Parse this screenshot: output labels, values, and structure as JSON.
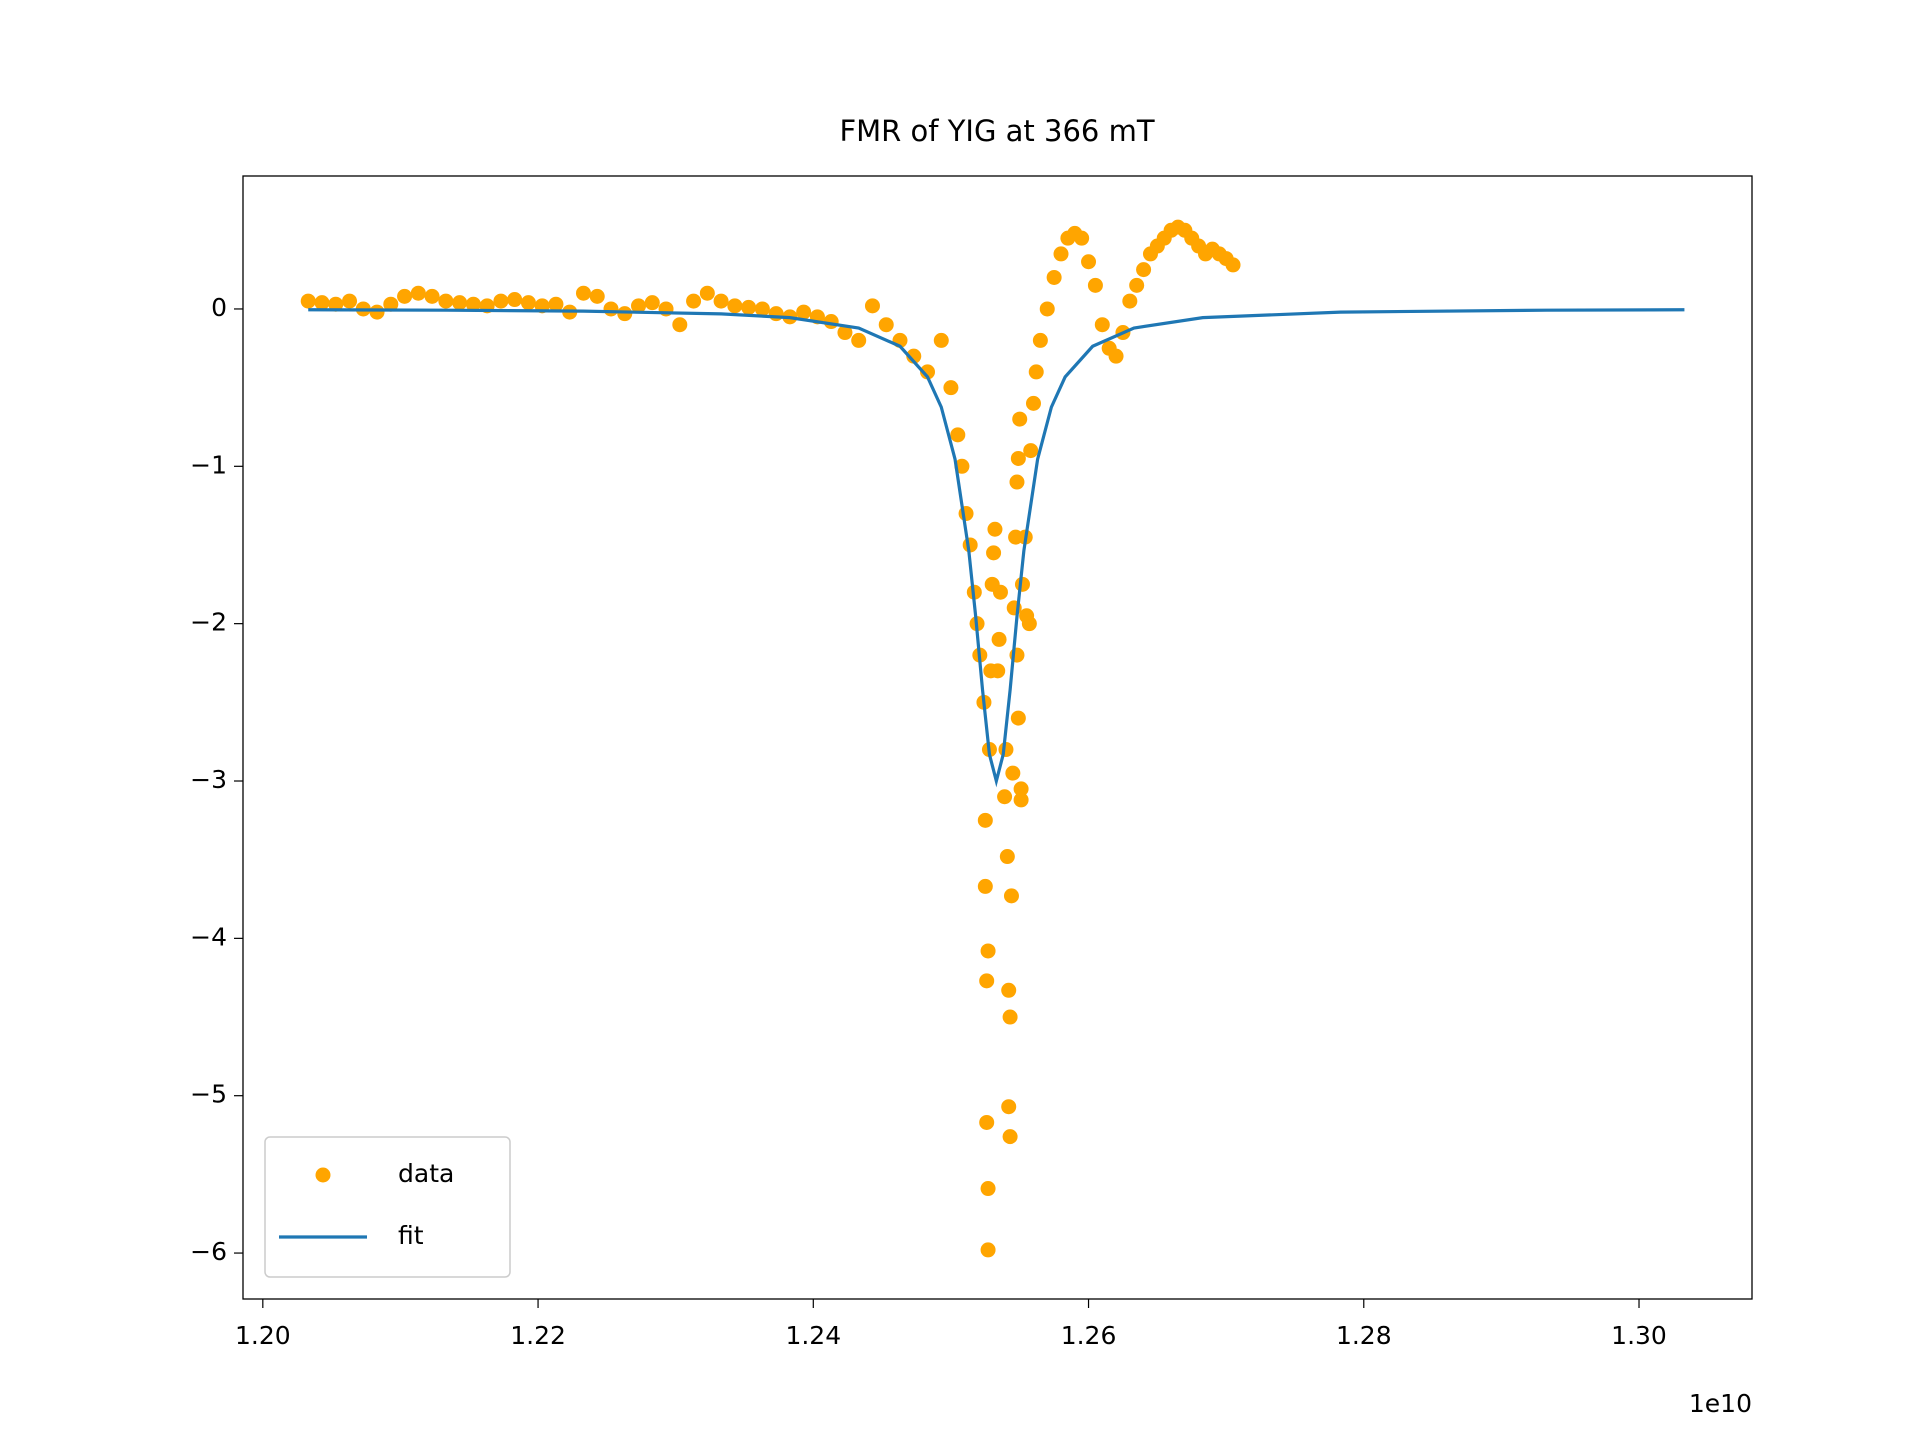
{
  "chart_data": {
    "type": "scatter",
    "title": "FMR of YIG at 366 mT",
    "x_offset_label": "1e10",
    "xlim": [
      1.19856,
      1.30821
    ],
    "ylim": [
      -6.292,
      0.845
    ],
    "xticks": [
      {
        "value": 1.2,
        "label": "1.20"
      },
      {
        "value": 1.22,
        "label": "1.22"
      },
      {
        "value": 1.24,
        "label": "1.24"
      },
      {
        "value": 1.26,
        "label": "1.26"
      },
      {
        "value": 1.28,
        "label": "1.28"
      },
      {
        "value": 1.3,
        "label": "1.30"
      }
    ],
    "yticks": [
      0,
      {
        "value": -1,
        "label": "−1"
      },
      {
        "value": -2,
        "label": "−2"
      },
      {
        "value": -3,
        "label": "−3"
      },
      {
        "value": -4,
        "label": "−4"
      },
      {
        "value": -5,
        "label": "−5"
      },
      {
        "value": -6,
        "label": "−6"
      }
    ],
    "legend": "lower left",
    "grid": false,
    "series": [
      {
        "name": "data",
        "color": "#ffa500",
        "style": "scatter",
        "x": [
          1.2033,
          1.2043,
          1.2053,
          1.2063,
          1.2073,
          1.2083,
          1.2093,
          1.2103,
          1.2113,
          1.2123,
          1.2133,
          1.2143,
          1.2153,
          1.2163,
          1.2173,
          1.2183,
          1.2193,
          1.2203,
          1.2213,
          1.2223,
          1.2233,
          1.2243,
          1.2253,
          1.2263,
          1.2273,
          1.2283,
          1.2293,
          1.2303,
          1.2313,
          1.2323,
          1.2333,
          1.2343,
          1.2353,
          1.2363,
          1.2373,
          1.2383,
          1.2393,
          1.2403,
          1.2413,
          1.2423,
          1.2433,
          1.2443,
          1.2453,
          1.2463,
          1.2473,
          1.2483,
          1.2493,
          1.25,
          1.2505,
          1.2508,
          1.2511,
          1.2514,
          1.2517,
          1.2519,
          1.2521,
          1.2524,
          1.2525,
          1.2525,
          1.2526,
          1.2526,
          1.2527,
          1.2527,
          1.2527,
          1.2528,
          1.2529,
          1.253,
          1.2531,
          1.2532,
          1.2534,
          1.2535,
          1.2536,
          1.2539,
          1.254,
          1.2541,
          1.2542,
          1.2542,
          1.2543,
          1.2543,
          1.2544,
          1.2545,
          1.2546,
          1.2547,
          1.2548,
          1.2549,
          1.255,
          1.2551,
          1.2551,
          1.2549,
          1.2548,
          1.2552,
          1.2554,
          1.2555,
          1.2557,
          1.2558,
          1.256,
          1.2562,
          1.2565,
          1.257,
          1.2575,
          1.258,
          1.2585,
          1.259,
          1.2595,
          1.26,
          1.2605,
          1.261,
          1.2615,
          1.262,
          1.2625,
          1.263,
          1.2635,
          1.264,
          1.2645,
          1.265,
          1.2655,
          1.266,
          1.2665,
          1.267,
          1.2675,
          1.268,
          1.2685,
          1.269,
          1.2695,
          1.27,
          1.2705
        ],
        "values": [
          0.05,
          0.04,
          0.03,
          0.05,
          0.0,
          -0.02,
          0.03,
          0.08,
          0.1,
          0.08,
          0.05,
          0.04,
          0.03,
          0.02,
          0.05,
          0.06,
          0.04,
          0.02,
          0.03,
          -0.02,
          0.1,
          0.08,
          0.0,
          -0.03,
          0.02,
          0.04,
          0.0,
          -0.1,
          0.05,
          0.1,
          0.05,
          0.02,
          0.01,
          0.0,
          -0.03,
          -0.05,
          -0.02,
          -0.05,
          -0.08,
          -0.15,
          -0.2,
          0.02,
          -0.1,
          -0.2,
          -0.3,
          -0.4,
          -0.2,
          -0.5,
          -0.8,
          -1.0,
          -1.3,
          -1.5,
          -1.8,
          -2.0,
          -2.2,
          -2.5,
          -3.25,
          -3.67,
          -4.27,
          -5.17,
          -5.98,
          -5.59,
          -4.08,
          -2.8,
          -2.3,
          -1.75,
          -1.55,
          -1.4,
          -2.3,
          -2.1,
          -1.8,
          -3.1,
          -2.8,
          -3.48,
          -5.07,
          -4.33,
          -4.5,
          -5.26,
          -3.73,
          -2.95,
          -1.9,
          -1.45,
          -1.1,
          -0.95,
          -0.7,
          -3.05,
          -3.12,
          -2.6,
          -2.2,
          -1.75,
          -1.45,
          -1.95,
          -2.0,
          -0.9,
          -0.6,
          -0.4,
          -0.2,
          0.0,
          0.2,
          0.35,
          0.45,
          0.48,
          0.45,
          0.3,
          0.15,
          -0.1,
          -0.25,
          -0.3,
          -0.15,
          0.05,
          0.15,
          0.25,
          0.35,
          0.4,
          0.45,
          0.5,
          0.52,
          0.5,
          0.45,
          0.4,
          0.35,
          0.38,
          0.35,
          0.32,
          0.28
        ]
      },
      {
        "name": "fit",
        "color": "#1f77b4",
        "style": "line",
        "x": [
          1.2033,
          1.2133,
          1.2233,
          1.2333,
          1.2383,
          1.2433,
          1.2463,
          1.2483,
          1.2493,
          1.2503,
          1.2513,
          1.2518,
          1.2523,
          1.2528,
          1.2533,
          1.2538,
          1.2543,
          1.2548,
          1.2553,
          1.2563,
          1.2573,
          1.2583,
          1.2603,
          1.2633,
          1.2683,
          1.2783,
          1.2933,
          1.3033
        ],
        "values": [
          -0.00503,
          -0.00786,
          -0.01394,
          -0.0312,
          -0.055,
          -0.121,
          -0.237,
          -0.432,
          -0.624,
          -0.955,
          -1.537,
          -1.954,
          -2.423,
          -2.831,
          -3,
          -2.831,
          -2.423,
          -1.954,
          -1.537,
          -0.955,
          -0.624,
          -0.432,
          -0.237,
          -0.121,
          -0.055,
          -0.02,
          -0.00786,
          -0.00503
        ]
      }
    ]
  }
}
